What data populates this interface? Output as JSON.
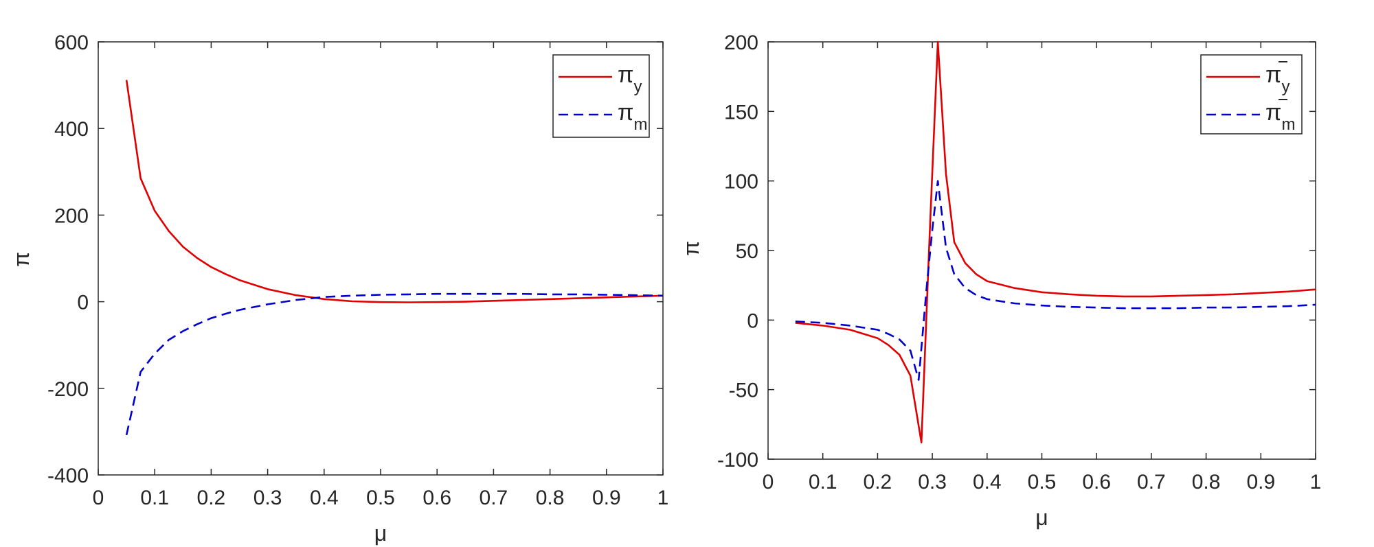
{
  "chart_data": [
    {
      "type": "line",
      "xlabel": "μ",
      "ylabel": "π",
      "xlim": [
        0,
        1
      ],
      "ylim": [
        -400,
        600
      ],
      "xticks": [
        "0",
        "0.1",
        "0.2",
        "0.3",
        "0.4",
        "0.5",
        "0.6",
        "0.7",
        "0.8",
        "0.9",
        "1"
      ],
      "yticks": [
        "-400",
        "-200",
        "0",
        "200",
        "400",
        "600"
      ],
      "grid": false,
      "legend_position": "top-right",
      "series": [
        {
          "name": "π",
          "subscript": "y",
          "bar": false,
          "color": "#e00000",
          "style": "solid",
          "x": [
            0.05,
            0.075,
            0.1,
            0.125,
            0.15,
            0.175,
            0.2,
            0.225,
            0.25,
            0.3,
            0.35,
            0.4,
            0.45,
            0.5,
            0.55,
            0.6,
            0.65,
            0.7,
            0.75,
            0.8,
            0.85,
            0.9,
            0.95,
            1.0
          ],
          "values": [
            512,
            285,
            210,
            163,
            127,
            101,
            80,
            64,
            50,
            29,
            15,
            6,
            1,
            -1,
            -1.5,
            -1,
            0,
            2,
            4,
            6,
            8,
            10,
            12,
            14
          ]
        },
        {
          "name": "π",
          "subscript": "m",
          "bar": false,
          "color": "#0000cc",
          "style": "dashed",
          "x": [
            0.05,
            0.075,
            0.1,
            0.125,
            0.15,
            0.175,
            0.2,
            0.225,
            0.25,
            0.3,
            0.35,
            0.4,
            0.45,
            0.5,
            0.55,
            0.6,
            0.65,
            0.7,
            0.75,
            0.8,
            0.85,
            0.9,
            0.95,
            1.0
          ],
          "values": [
            -308,
            -162,
            -120,
            -88,
            -68,
            -52,
            -38,
            -28,
            -19,
            -6,
            4,
            11,
            14,
            16,
            17,
            18,
            18,
            18,
            18,
            17,
            17,
            16,
            15,
            14
          ]
        }
      ]
    },
    {
      "type": "line",
      "xlabel": "μ",
      "ylabel": "π",
      "xlim": [
        0,
        1
      ],
      "ylim": [
        -100,
        200
      ],
      "xticks": [
        "0",
        "0.1",
        "0.2",
        "0.3",
        "0.4",
        "0.5",
        "0.6",
        "0.7",
        "0.8",
        "0.9",
        "1"
      ],
      "yticks": [
        "-100",
        "-50",
        "0",
        "50",
        "100",
        "150",
        "200"
      ],
      "grid": false,
      "legend_position": "top-right",
      "series": [
        {
          "name": "π",
          "subscript": "y",
          "bar": true,
          "color": "#e00000",
          "style": "solid",
          "x": [
            0.05,
            0.1,
            0.15,
            0.2,
            0.22,
            0.24,
            0.26,
            0.28,
            0.295,
            0.31,
            0.325,
            0.34,
            0.36,
            0.38,
            0.4,
            0.45,
            0.5,
            0.55,
            0.6,
            0.65,
            0.7,
            0.75,
            0.8,
            0.85,
            0.9,
            0.95,
            1.0
          ],
          "values": [
            -2,
            -4,
            -7,
            -13,
            -18,
            -25,
            -40,
            -88,
            60,
            200,
            105,
            56,
            41,
            33,
            28,
            23,
            20,
            18.5,
            17.5,
            17,
            17,
            17.5,
            18,
            18.5,
            19.5,
            20.5,
            22
          ]
        },
        {
          "name": "π",
          "subscript": "m",
          "bar": true,
          "color": "#0000cc",
          "style": "dashed",
          "x": [
            0.05,
            0.1,
            0.15,
            0.2,
            0.22,
            0.24,
            0.26,
            0.275,
            0.29,
            0.3,
            0.31,
            0.325,
            0.34,
            0.36,
            0.38,
            0.4,
            0.45,
            0.5,
            0.55,
            0.6,
            0.65,
            0.7,
            0.75,
            0.8,
            0.85,
            0.9,
            0.95,
            1.0
          ],
          "values": [
            -1,
            -2,
            -4,
            -7,
            -10,
            -14,
            -22,
            -43,
            25,
            65,
            100,
            52,
            33,
            23,
            18,
            15,
            12,
            10.5,
            9.5,
            9,
            8.5,
            8.5,
            8.5,
            9,
            9,
            9.5,
            10,
            11
          ]
        }
      ]
    }
  ]
}
